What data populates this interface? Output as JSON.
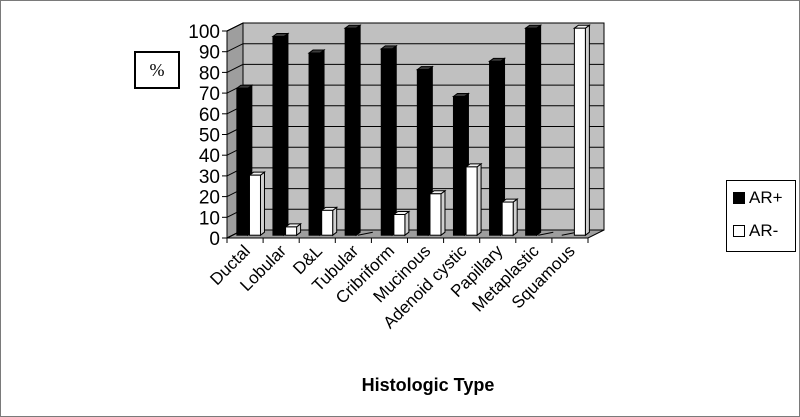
{
  "chart_data": {
    "type": "bar",
    "xlabel": "Histologic Type",
    "ylabel": "%",
    "ylim": [
      0,
      100
    ],
    "yticks": [
      0,
      10,
      20,
      30,
      40,
      50,
      60,
      70,
      80,
      90,
      100
    ],
    "grid": true,
    "legend_position": "right",
    "categories": [
      "Ductal",
      "Lobular",
      "D&L",
      "Tubular",
      "Cribriform",
      "Mucinous",
      "Adenoid cystic",
      "Papillary",
      "Metaplastic",
      "Squamous"
    ],
    "series": [
      {
        "name": "AR+",
        "color": "#000000",
        "values": [
          71,
          96,
          88,
          100,
          90,
          80,
          67,
          84,
          100,
          0
        ]
      },
      {
        "name": "AR-",
        "color": "#ffffff",
        "values": [
          29,
          4,
          12,
          0,
          10,
          20,
          33,
          16,
          0,
          100
        ]
      }
    ]
  }
}
